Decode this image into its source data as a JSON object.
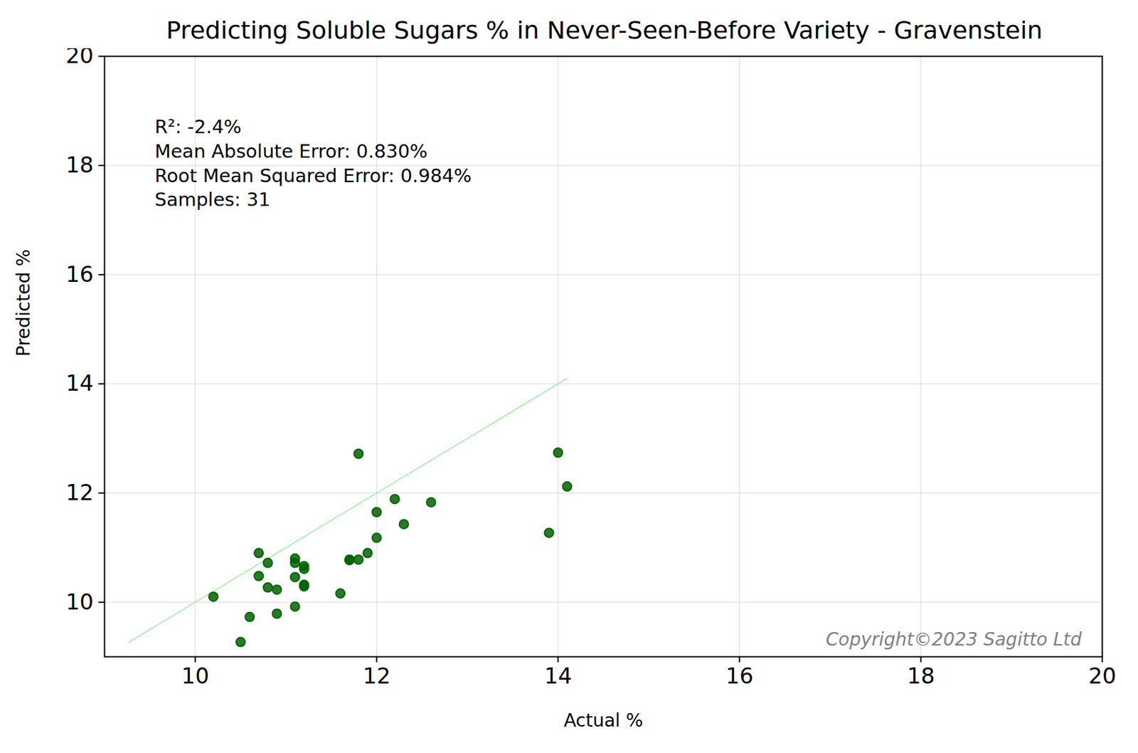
{
  "chart_data": {
    "type": "scatter",
    "title": "Predicting Soluble Sugars % in Never-Seen-Before Variety - Gravenstein",
    "x_label": "Actual %",
    "y_label": "Predicted %",
    "annotations": [
      "R²: -2.4%",
      "Mean Absolute Error: 0.830%",
      "Root Mean Squared Error: 0.984%",
      "Samples: 31"
    ],
    "watermark": "Copyright©2023 Sagitto Ltd",
    "color": "#006400",
    "grid": true,
    "xlim": [
      9,
      20
    ],
    "ylim": [
      9,
      20
    ],
    "xticks": [
      10,
      12,
      14,
      16,
      18,
      20
    ],
    "yticks": [
      10,
      12,
      14,
      16,
      18,
      20
    ],
    "reference_line": {
      "x": [
        9.27,
        14.1
      ],
      "y": [
        9.27,
        14.1
      ],
      "color": "#90ee90"
    },
    "x": [
      10.2,
      10.5,
      10.6,
      10.7,
      10.7,
      10.8,
      10.8,
      10.9,
      10.9,
      11.1,
      11.1,
      11.1,
      11.1,
      11.2,
      11.2,
      11.2,
      11.2,
      11.6,
      11.7,
      11.7,
      11.8,
      11.8,
      11.9,
      12.0,
      12.0,
      12.2,
      12.3,
      12.6,
      13.9,
      14.0,
      14.1
    ],
    "values": [
      10.1,
      9.27,
      9.73,
      10.9,
      10.48,
      10.72,
      10.27,
      9.79,
      10.23,
      10.8,
      10.72,
      10.46,
      9.92,
      10.66,
      10.61,
      10.32,
      10.29,
      10.16,
      10.78,
      10.77,
      10.78,
      12.72,
      10.9,
      11.65,
      11.18,
      11.89,
      11.43,
      11.83,
      11.27,
      12.74,
      12.12
    ]
  }
}
